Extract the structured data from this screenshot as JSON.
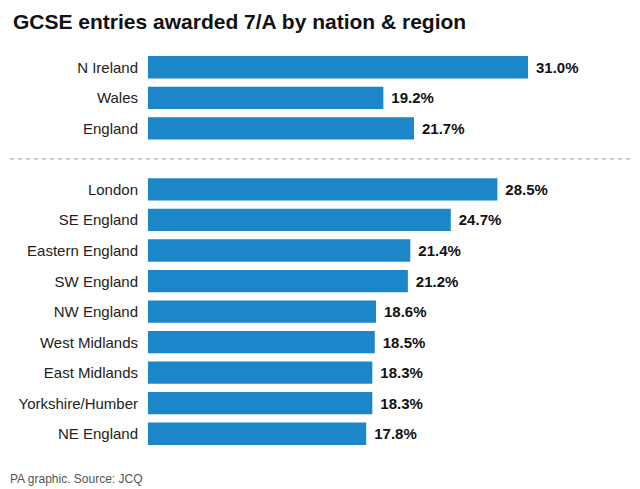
{
  "chart_data": {
    "type": "bar",
    "title": "GCSE entries awarded 7/A by nation & region",
    "categories": [
      "N Ireland",
      "Wales",
      "England",
      null,
      "London",
      "SE England",
      "Eastern England",
      "SW England",
      "NW England",
      "West Midlands",
      "East Midlands",
      "Yorkshire/Humber",
      "NE England"
    ],
    "values": [
      31.0,
      19.2,
      21.7,
      null,
      28.5,
      24.7,
      21.4,
      21.2,
      18.6,
      18.5,
      18.3,
      18.3,
      17.8
    ],
    "value_labels": [
      "31.0%",
      "19.2%",
      "21.7%",
      null,
      "28.5%",
      "24.7%",
      "21.4%",
      "21.2%",
      "18.6%",
      "18.5%",
      "18.3%",
      "18.3%",
      "17.8%"
    ],
    "color": "#1b87c8",
    "orientation": "horizontal",
    "data_labels": true,
    "tick_labels": "y",
    "grid": false,
    "annotations": [
      "PA graphic. Source: JCQ"
    ]
  }
}
